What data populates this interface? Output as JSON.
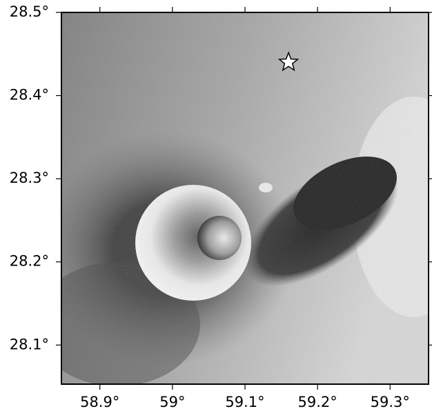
{
  "chart_data": {
    "type": "map",
    "xlim": [
      58.847,
      59.353
    ],
    "ylim": [
      28.053,
      28.5
    ],
    "xticks": [
      {
        "value": 58.9,
        "label": "58.9°"
      },
      {
        "value": 59,
        "label": "59°"
      },
      {
        "value": 59.1,
        "label": "59.1°"
      },
      {
        "value": 59.2,
        "label": "59.2°"
      },
      {
        "value": 59.3,
        "label": "59.3°"
      }
    ],
    "yticks": [
      {
        "value": 28.5,
        "label": "28.5°"
      },
      {
        "value": 28.4,
        "label": "28.4°"
      },
      {
        "value": 28.3,
        "label": "28.3°"
      },
      {
        "value": 28.2,
        "label": "28.2°"
      },
      {
        "value": 28.1,
        "label": "28.1°"
      }
    ],
    "marker": {
      "x": 59.16,
      "y": 28.44,
      "color": "#ffffff"
    }
  }
}
